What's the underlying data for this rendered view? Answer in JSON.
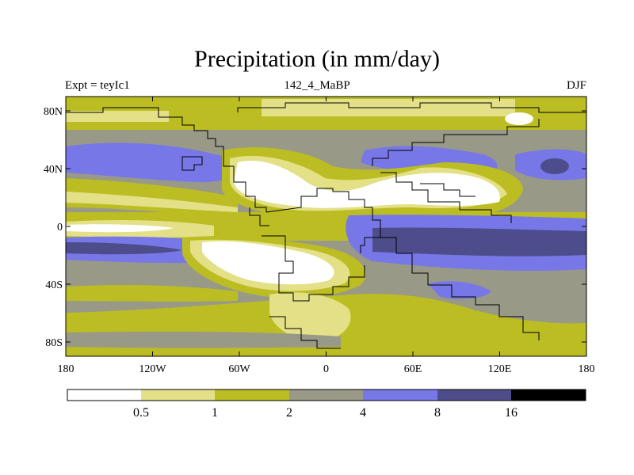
{
  "title": "Precipitation (in mm/day)",
  "left_label": "Expt = teyIc1",
  "center_label": "142_4_MaBP",
  "right_label": "DJF",
  "colors": {
    "c0": "#ffffff",
    "c1": "#e3e087",
    "c2": "#bcbd22",
    "c3": "#999988",
    "c4": "#7777e8",
    "c5": "#4d4d8c",
    "c6": "#000000",
    "coast": "#000000"
  },
  "lon_ticks": [
    "180",
    "120W",
    "60W",
    "0",
    "60E",
    "120E",
    "180"
  ],
  "lat_ticks": [
    "80N",
    "40N",
    "0",
    "40S",
    "80S"
  ],
  "colorbar": {
    "labels": [
      "0.5",
      "1",
      "2",
      "4",
      "8",
      "16"
    ]
  }
}
